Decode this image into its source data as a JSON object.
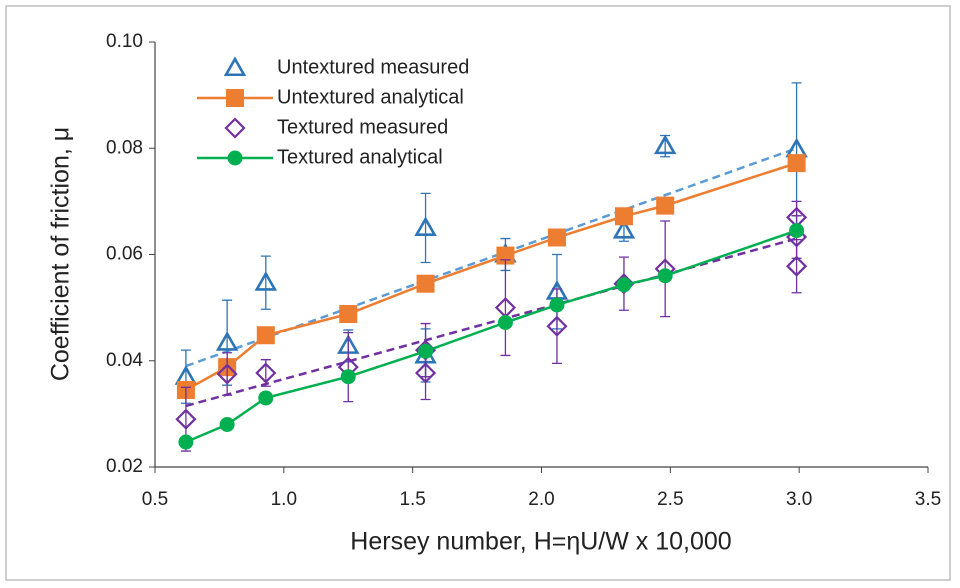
{
  "chart_data": {
    "type": "scatter",
    "x_label": "Hersey number, H=ηU/W x 10,000",
    "y_label": "Coefficient of friction, μ",
    "xlim": [
      0.5,
      3.5
    ],
    "xticks": [
      0.5,
      {
        "value": 1,
        "label": "1.0"
      },
      1.5,
      {
        "value": 2,
        "label": "2.0"
      },
      2.5,
      {
        "value": 3,
        "label": "3.0"
      },
      3.5
    ],
    "ylim": [
      0.02,
      0.1
    ],
    "yticks": [
      0.02,
      0.04,
      0.06,
      0.08,
      {
        "value": 0.1,
        "label": "0.10"
      }
    ],
    "legend": "upper-left",
    "series": [
      {
        "name": "Untextured measured",
        "color": "#2e75b6",
        "marker": "triangle",
        "line": false,
        "x": [
          0.62,
          0.78,
          0.93,
          1.25,
          1.55,
          1.55,
          1.86,
          2.06,
          2.32,
          2.48,
          2.99
        ],
        "values": [
          0.037,
          0.0434,
          0.0547,
          0.0428,
          0.065,
          0.041,
          0.06,
          0.053,
          0.0645,
          0.0804,
          0.0798
        ],
        "errors": [
          0.005,
          0.008,
          0.005,
          0.003,
          0.0065,
          0.005,
          0.003,
          0.007,
          0.002,
          0.002,
          0.0125
        ]
      },
      {
        "name": "Untextured analytical",
        "color": "#ed7d31",
        "marker": "square",
        "line": true,
        "x": [
          0.62,
          0.78,
          0.93,
          1.25,
          1.55,
          1.86,
          2.06,
          2.32,
          2.48,
          2.99
        ],
        "values": [
          0.0345,
          0.0388,
          0.0448,
          0.0488,
          0.0545,
          0.0598,
          0.0632,
          0.0672,
          0.0692,
          0.0772
        ]
      },
      {
        "name": "Textured measured",
        "color": "#7030a0",
        "marker": "diamond",
        "line": false,
        "x": [
          0.62,
          0.78,
          0.93,
          1.25,
          1.55,
          1.55,
          1.86,
          2.06,
          2.32,
          2.48,
          2.99,
          2.99,
          2.99
        ],
        "values": [
          0.029,
          0.0375,
          0.0377,
          0.0388,
          0.0377,
          0.042,
          0.05,
          0.0465,
          0.0545,
          0.0573,
          0.0578,
          0.0633,
          0.067
        ],
        "errors": [
          0.006,
          0.004,
          0.0025,
          0.0065,
          0.005,
          0.005,
          0.009,
          0.007,
          0.005,
          0.009,
          0.005,
          0.004,
          0.003
        ]
      },
      {
        "name": "Textured analytical",
        "color": "#00b050",
        "marker": "circle",
        "line": true,
        "x": [
          0.62,
          0.78,
          0.93,
          1.25,
          1.55,
          1.86,
          2.06,
          2.32,
          2.48,
          2.99
        ],
        "values": [
          0.0247,
          0.028,
          0.033,
          0.037,
          0.0418,
          0.0472,
          0.0505,
          0.0543,
          0.056,
          0.0645
        ]
      }
    ],
    "trendlines": [
      {
        "color": "#5b9bd5",
        "x": [
          0.62,
          2.99
        ],
        "values": [
          0.039,
          0.08
        ]
      },
      {
        "color": "#7030a0",
        "x": [
          0.62,
          2.99
        ],
        "values": [
          0.0315,
          0.063
        ]
      }
    ]
  }
}
